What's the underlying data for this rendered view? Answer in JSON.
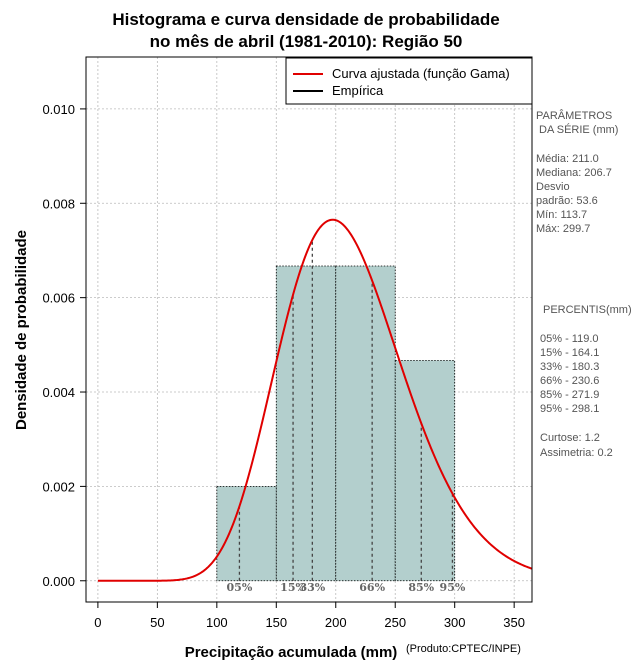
{
  "chart_data": {
    "type": "bar",
    "title_line1": "Histograma e curva densidade de probabilidade",
    "title_line2": "no mês de abril (1981-2010): Região 50",
    "xlabel": "Precipitação acumulada (mm)",
    "ylabel": "Densidade de probabilidade",
    "credit": "(Produto:CPTEC/INPE)",
    "xlim": [
      -10,
      365
    ],
    "ylim": [
      -0.00045,
      0.0111
    ],
    "x_ticks": [
      0,
      50,
      100,
      150,
      200,
      250,
      300,
      350
    ],
    "y_ticks": [
      0.0,
      0.002,
      0.004,
      0.006,
      0.008,
      0.01
    ],
    "y_tick_labels": [
      "0.000",
      "0.002",
      "0.004",
      "0.006",
      "0.008",
      "0.010"
    ],
    "grid": true,
    "legend_position": "top-right",
    "bins": [
      {
        "start": 100,
        "end": 150,
        "density": 0.002
      },
      {
        "start": 150,
        "end": 200,
        "density": 0.00667
      },
      {
        "start": 200,
        "end": 250,
        "density": 0.00667
      },
      {
        "start": 250,
        "end": 300,
        "density": 0.00467
      }
    ],
    "bar_color": "#b3cfcd",
    "curve_color": "#e00000",
    "gamma_fit": {
      "mean": 211.0,
      "sd": 53.6
    },
    "series": [
      {
        "name": "Curva ajustada (função Gama)",
        "color": "#e00000"
      },
      {
        "name": "Empírica",
        "color": "#000000"
      }
    ],
    "percentile_markers": [
      {
        "label": "05%",
        "value": 119.0
      },
      {
        "label": "15%",
        "value": 164.1
      },
      {
        "label": "33%",
        "value": 180.3
      },
      {
        "label": "66%",
        "value": 230.6
      },
      {
        "label": "85%",
        "value": 271.9
      },
      {
        "label": "95%",
        "value": 298.1
      }
    ]
  },
  "side_panel": {
    "params_title_1": "PARÂMETROS",
    "params_title_2": "DA SÉRIE (mm)",
    "stats": [
      "Média:  211.0",
      "Mediana:  206.7",
      "Desvio",
      "padrão:  53.6",
      "Mín:  113.7",
      "Máx:  299.7"
    ],
    "percentis_title": "PERCENTIS(mm)",
    "percentis": [
      "05% -  119.0",
      "15% -  164.1",
      "33% -  180.3",
      "66% -  230.6",
      "85% -  271.9",
      "95% -  298.1"
    ],
    "extra": [
      "Curtose:  1.2",
      "Assimetria:  0.2"
    ]
  }
}
